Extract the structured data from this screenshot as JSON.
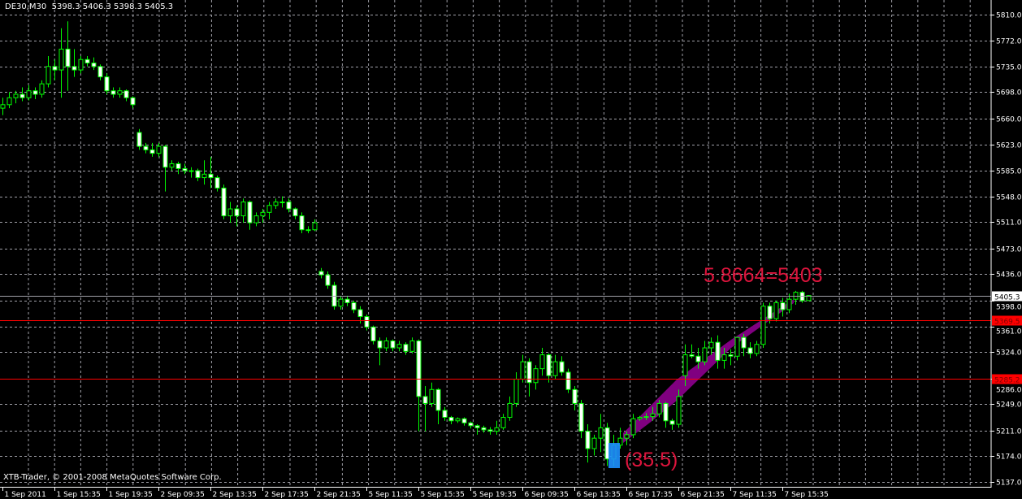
{
  "header": {
    "symbol": "DE30,M30",
    "ohlc": "5398.3 5406.3 5398.3 5405.3"
  },
  "copyright": "XTB-Trader, © 2001-2008 MetaQuotes Software Corp.",
  "colors": {
    "background": "#000000",
    "grid": "#a0a0a8",
    "candle_outline": "#00ff00",
    "bear_body": "#ffffff",
    "bull_body": "#000000",
    "hline": "#ff0000",
    "annotation_text": "#dc143c",
    "channel": "#800080",
    "highlight_box": "#1e90ff",
    "bid_line": "#a0a0a8"
  },
  "annotations": {
    "formula": "5.8664=5403",
    "range": "(35.5)"
  },
  "price_markers": [
    {
      "label": "5405.3",
      "price": 5405.3,
      "style": "bid"
    },
    {
      "label": "5369.5",
      "price": 5369.5,
      "style": "hline"
    },
    {
      "label": "5285.2",
      "price": 5285.2,
      "style": "hline"
    }
  ],
  "chart_data": {
    "type": "candlestick",
    "symbol": "DE30",
    "timeframe": "M30",
    "ylim": [
      5130,
      5826
    ],
    "y_ticks": [
      "5810.0",
      "5772.0",
      "5735.0",
      "5698.0",
      "5660.0",
      "5623.0",
      "5585.0",
      "5548.0",
      "5511.0",
      "5473.0",
      "5436.0",
      "5398.0",
      "5361.0",
      "5324.0",
      "5286.0",
      "5249.0",
      "5211.0",
      "5174.0",
      "5137.0"
    ],
    "x_ticks": [
      "1 Sep 2011",
      "1 Sep 15:35",
      "1 Sep 19:35",
      "2 Sep 09:35",
      "2 Sep 13:35",
      "2 Sep 17:35",
      "2 Sep 21:35",
      "5 Sep 11:35",
      "5 Sep 15:35",
      "5 Sep 19:35",
      "6 Sep 09:35",
      "6 Sep 13:35",
      "6 Sep 17:35",
      "6 Sep 21:35",
      "7 Sep 11:35",
      "7 Sep 15:35"
    ],
    "ohlc": [
      [
        5675,
        5690,
        5665,
        5680
      ],
      [
        5680,
        5698,
        5675,
        5690
      ],
      [
        5690,
        5700,
        5682,
        5695
      ],
      [
        5695,
        5705,
        5685,
        5690
      ],
      [
        5690,
        5708,
        5686,
        5700
      ],
      [
        5700,
        5705,
        5688,
        5695
      ],
      [
        5695,
        5715,
        5690,
        5710
      ],
      [
        5710,
        5750,
        5705,
        5735
      ],
      [
        5735,
        5745,
        5715,
        5730
      ],
      [
        5730,
        5790,
        5690,
        5760
      ],
      [
        5760,
        5800,
        5700,
        5735
      ],
      [
        5735,
        5760,
        5720,
        5730
      ],
      [
        5730,
        5750,
        5725,
        5745
      ],
      [
        5745,
        5750,
        5735,
        5740
      ],
      [
        5740,
        5748,
        5730,
        5735
      ],
      [
        5735,
        5738,
        5715,
        5720
      ],
      [
        5720,
        5725,
        5695,
        5700
      ],
      [
        5700,
        5705,
        5690,
        5695
      ],
      [
        5695,
        5705,
        5690,
        5700
      ],
      [
        5700,
        5702,
        5685,
        5690
      ],
      [
        5690,
        5692,
        5675,
        5680
      ],
      [
        5640,
        5645,
        5615,
        5620
      ],
      [
        5620,
        5625,
        5610,
        5615
      ],
      [
        5615,
        5625,
        5605,
        5610
      ],
      [
        5610,
        5625,
        5605,
        5620
      ],
      [
        5620,
        5622,
        5555,
        5590
      ],
      [
        5590,
        5600,
        5585,
        5595
      ],
      [
        5595,
        5598,
        5580,
        5588
      ],
      [
        5588,
        5595,
        5580,
        5585
      ],
      [
        5585,
        5590,
        5575,
        5585
      ],
      [
        5585,
        5588,
        5570,
        5575
      ],
      [
        5575,
        5600,
        5565,
        5580
      ],
      [
        5580,
        5605,
        5560,
        5575
      ],
      [
        5575,
        5578,
        5555,
        5560
      ],
      [
        5560,
        5565,
        5515,
        5520
      ],
      [
        5520,
        5540,
        5510,
        5530
      ],
      [
        5530,
        5535,
        5505,
        5520
      ],
      [
        5520,
        5545,
        5510,
        5540
      ],
      [
        5540,
        5542,
        5500,
        5510
      ],
      [
        5510,
        5525,
        5505,
        5520
      ],
      [
        5520,
        5530,
        5510,
        5525
      ],
      [
        5525,
        5540,
        5515,
        5535
      ],
      [
        5535,
        5545,
        5530,
        5540
      ],
      [
        5540,
        5548,
        5532,
        5540
      ],
      [
        5540,
        5545,
        5525,
        5530
      ],
      [
        5530,
        5532,
        5515,
        5520
      ],
      [
        5520,
        5525,
        5495,
        5500
      ],
      [
        5500,
        5505,
        5495,
        5500
      ],
      [
        5500,
        5515,
        5498,
        5510
      ],
      [
        5440,
        5445,
        5430,
        5435
      ],
      [
        5435,
        5440,
        5415,
        5420
      ],
      [
        5420,
        5425,
        5385,
        5390
      ],
      [
        5390,
        5405,
        5385,
        5400
      ],
      [
        5400,
        5405,
        5390,
        5395
      ],
      [
        5395,
        5398,
        5380,
        5385
      ],
      [
        5385,
        5390,
        5365,
        5375
      ],
      [
        5375,
        5378,
        5355,
        5360
      ],
      [
        5360,
        5362,
        5335,
        5340
      ],
      [
        5340,
        5345,
        5305,
        5330
      ],
      [
        5330,
        5345,
        5325,
        5340
      ],
      [
        5340,
        5342,
        5325,
        5330
      ],
      [
        5330,
        5340,
        5325,
        5335
      ],
      [
        5335,
        5338,
        5320,
        5325
      ],
      [
        5325,
        5345,
        5322,
        5340
      ],
      [
        5340,
        5342,
        5210,
        5260
      ],
      [
        5260,
        5275,
        5210,
        5250
      ],
      [
        5250,
        5280,
        5245,
        5270
      ],
      [
        5270,
        5272,
        5220,
        5240
      ],
      [
        5240,
        5245,
        5225,
        5230
      ],
      [
        5230,
        5232,
        5220,
        5225
      ],
      [
        5225,
        5230,
        5222,
        5228
      ],
      [
        5228,
        5230,
        5218,
        5222
      ],
      [
        5222,
        5224,
        5214,
        5218
      ],
      [
        5218,
        5220,
        5205,
        5215
      ],
      [
        5215,
        5218,
        5208,
        5212
      ],
      [
        5212,
        5216,
        5205,
        5210
      ],
      [
        5210,
        5225,
        5205,
        5215
      ],
      [
        5215,
        5235,
        5212,
        5230
      ],
      [
        5230,
        5260,
        5225,
        5250
      ],
      [
        5250,
        5295,
        5245,
        5285
      ],
      [
        5285,
        5320,
        5280,
        5310
      ],
      [
        5310,
        5315,
        5260,
        5280
      ],
      [
        5280,
        5305,
        5270,
        5300
      ],
      [
        5300,
        5330,
        5290,
        5320
      ],
      [
        5320,
        5322,
        5280,
        5290
      ],
      [
        5290,
        5320,
        5285,
        5310
      ],
      [
        5310,
        5318,
        5290,
        5295
      ],
      [
        5295,
        5300,
        5265,
        5270
      ],
      [
        5270,
        5275,
        5240,
        5250
      ],
      [
        5250,
        5255,
        5200,
        5210
      ],
      [
        5210,
        5220,
        5165,
        5185
      ],
      [
        5185,
        5205,
        5175,
        5200
      ],
      [
        5200,
        5235,
        5180,
        5215
      ],
      [
        5215,
        5222,
        5160,
        5170
      ],
      [
        5170,
        5205,
        5160,
        5190
      ],
      [
        5190,
        5215,
        5185,
        5200
      ],
      [
        5200,
        5210,
        5190,
        5205
      ],
      [
        5205,
        5235,
        5200,
        5228
      ],
      [
        5228,
        5232,
        5225,
        5230
      ],
      [
        5230,
        5236,
        5226,
        5231
      ],
      [
        5231,
        5245,
        5225,
        5235
      ],
      [
        5235,
        5255,
        5230,
        5250
      ],
      [
        5250,
        5252,
        5215,
        5225
      ],
      [
        5225,
        5228,
        5212,
        5220
      ],
      [
        5220,
        5270,
        5215,
        5260
      ],
      [
        5290,
        5335,
        5275,
        5320
      ],
      [
        5320,
        5335,
        5315,
        5318
      ],
      [
        5318,
        5330,
        5300,
        5310
      ],
      [
        5310,
        5340,
        5305,
        5330
      ],
      [
        5330,
        5345,
        5320,
        5338
      ],
      [
        5338,
        5348,
        5300,
        5312
      ],
      [
        5312,
        5330,
        5300,
        5320
      ],
      [
        5320,
        5328,
        5305,
        5318
      ],
      [
        5318,
        5345,
        5312,
        5345
      ],
      [
        5345,
        5350,
        5318,
        5330
      ],
      [
        5330,
        5338,
        5315,
        5322
      ],
      [
        5322,
        5340,
        5318,
        5335
      ],
      [
        5335,
        5395,
        5330,
        5390
      ],
      [
        5390,
        5395,
        5365,
        5372
      ],
      [
        5372,
        5398,
        5368,
        5395
      ],
      [
        5395,
        5402,
        5375,
        5385
      ],
      [
        5385,
        5408,
        5380,
        5400
      ],
      [
        5400,
        5412,
        5392,
        5410
      ],
      [
        5410,
        5412,
        5395,
        5398
      ],
      [
        5398,
        5406,
        5398,
        5405.3
      ]
    ]
  }
}
